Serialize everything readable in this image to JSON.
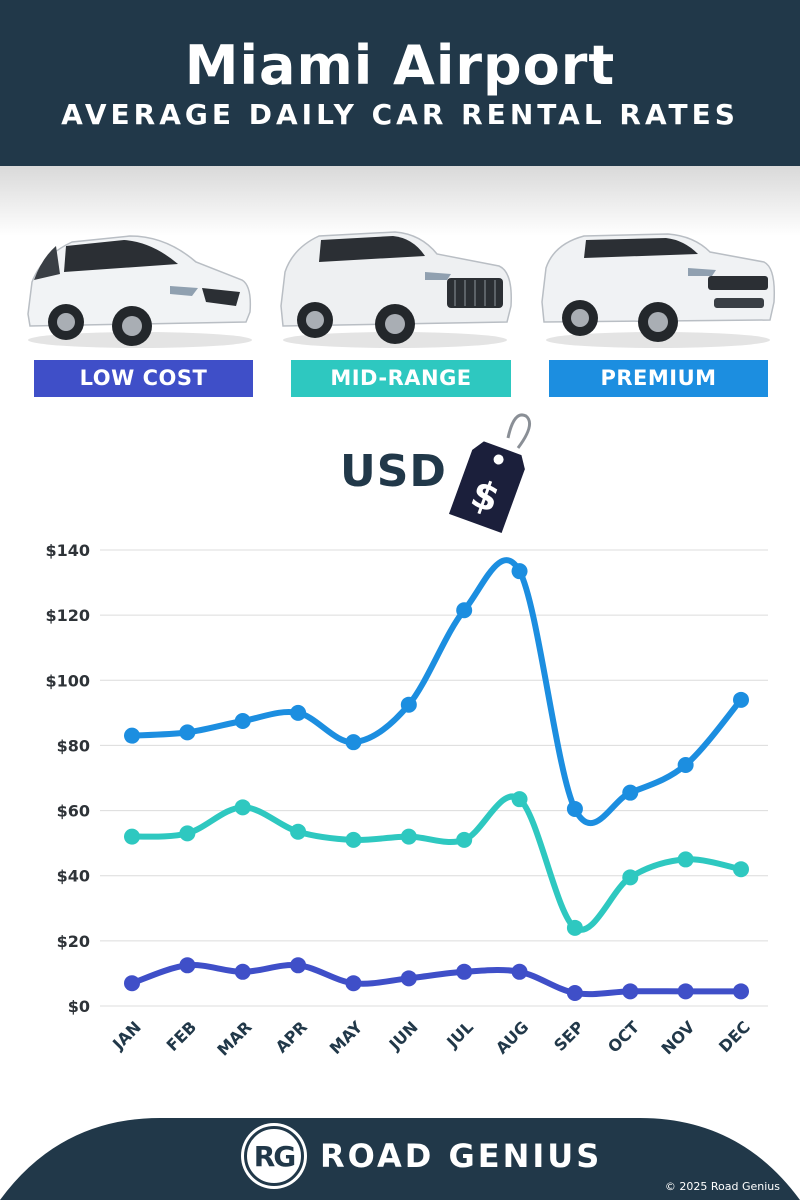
{
  "header": {
    "title": "Miami Airport",
    "subtitle": "AVERAGE DAILY CAR RENTAL RATES"
  },
  "categories": [
    {
      "label": "LOW COST",
      "color": "#3f4fc8"
    },
    {
      "label": "MID-RANGE",
      "color": "#2ec8c0"
    },
    {
      "label": "PREMIUM",
      "color": "#1c8ee0"
    }
  ],
  "currency": {
    "label": "USD",
    "symbol": "$"
  },
  "chart_data": {
    "type": "line",
    "x": [
      "JAN",
      "FEB",
      "MAR",
      "APR",
      "MAY",
      "JUN",
      "JUL",
      "AUG",
      "SEP",
      "OCT",
      "NOV",
      "DEC"
    ],
    "y_ticks": [
      "$0",
      "$20",
      "$40",
      "$60",
      "$80",
      "$100",
      "$120",
      "$140"
    ],
    "ylim": [
      0,
      140
    ],
    "grid": true,
    "series": [
      {
        "category": "LOW COST",
        "color": "#3f4fc8",
        "values": [
          7,
          12.5,
          10.5,
          12.5,
          7,
          8.5,
          10.5,
          10.5,
          4,
          4.5,
          4.5,
          4.5
        ]
      },
      {
        "category": "MID-RANGE",
        "color": "#2ec8c0",
        "values": [
          52,
          53,
          61,
          53.5,
          51,
          52,
          51,
          63.5,
          24,
          39.5,
          45,
          42
        ]
      },
      {
        "category": "PREMIUM",
        "color": "#1c8ee0",
        "values": [
          83,
          84,
          87.5,
          90,
          81,
          92.5,
          121.5,
          133.5,
          60.5,
          65.5,
          74,
          94
        ]
      }
    ]
  },
  "footer": {
    "logo_text": "RG",
    "brand": "ROAD GENIUS",
    "copyright": "© 2025 Road Genius"
  }
}
